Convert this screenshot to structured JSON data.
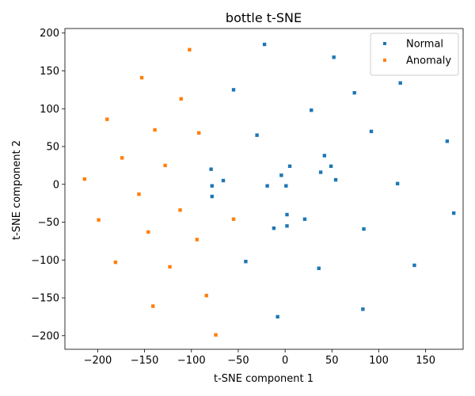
{
  "chart_data": {
    "type": "scatter",
    "title": "bottle t-SNE",
    "xlabel": "t-SNE component 1",
    "ylabel": "t-SNE component 2",
    "xlim": [
      -235,
      190
    ],
    "ylim": [
      -218,
      206
    ],
    "xticks": [
      -200,
      -150,
      -100,
      -50,
      0,
      50,
      100,
      150
    ],
    "yticks": [
      -200,
      -150,
      -100,
      -50,
      0,
      50,
      100,
      150,
      200
    ],
    "grid": false,
    "legend": {
      "position": "top-right"
    },
    "series": [
      {
        "name": "Normal",
        "color": "#1f77b4",
        "points": [
          [
            -22,
            185
          ],
          [
            52,
            168
          ],
          [
            -55,
            125
          ],
          [
            123,
            134
          ],
          [
            74,
            121
          ],
          [
            28,
            98
          ],
          [
            92,
            70
          ],
          [
            -30,
            65
          ],
          [
            173,
            57
          ],
          [
            42,
            38
          ],
          [
            5,
            24
          ],
          [
            49,
            24
          ],
          [
            -79,
            20
          ],
          [
            38,
            16
          ],
          [
            -4,
            12
          ],
          [
            -66,
            5
          ],
          [
            54,
            6
          ],
          [
            -78,
            -2
          ],
          [
            -19,
            -2
          ],
          [
            1,
            -2
          ],
          [
            120,
            1
          ],
          [
            -78,
            -16
          ],
          [
            2,
            -40
          ],
          [
            180,
            -38
          ],
          [
            21,
            -46
          ],
          [
            2,
            -55
          ],
          [
            -12,
            -58
          ],
          [
            84,
            -59
          ],
          [
            -42,
            -102
          ],
          [
            138,
            -107
          ],
          [
            36,
            -111
          ],
          [
            83,
            -165
          ],
          [
            -8,
            -175
          ]
        ]
      },
      {
        "name": "Anomaly",
        "color": "#ff7f0e",
        "points": [
          [
            -102,
            178
          ],
          [
            -153,
            141
          ],
          [
            -111,
            113
          ],
          [
            -190,
            86
          ],
          [
            -139,
            72
          ],
          [
            -92,
            68
          ],
          [
            -174,
            35
          ],
          [
            -128,
            25
          ],
          [
            -214,
            7
          ],
          [
            -156,
            -13
          ],
          [
            -112,
            -34
          ],
          [
            -199,
            -47
          ],
          [
            -55,
            -46
          ],
          [
            -146,
            -63
          ],
          [
            -94,
            -73
          ],
          [
            -181,
            -103
          ],
          [
            -123,
            -109
          ],
          [
            -84,
            -147
          ],
          [
            -141,
            -161
          ],
          [
            -74,
            -199
          ]
        ]
      }
    ]
  }
}
